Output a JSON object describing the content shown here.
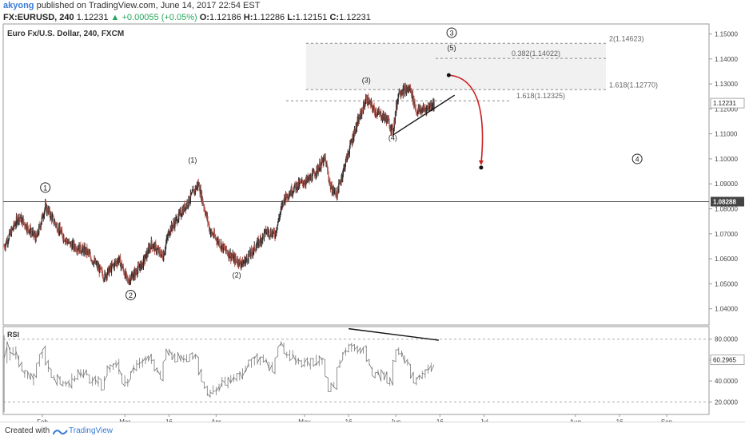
{
  "header": {
    "user": "akyong",
    "published": "published on TradingView.com, June 14, 2017 22:54 EST",
    "symbol": "FX:EURUSD, 240",
    "last": "1.12231",
    "change": "▲ +0.00055 (+0.05%)",
    "o_label": "O:",
    "o_value": "1.12186",
    "h_label": "H:",
    "h_value": "1.12286",
    "l_label": "L:",
    "l_value": "1.12151",
    "c_label": "C:",
    "c_value": "1.12231"
  },
  "chart_data": {
    "type": "candlestick",
    "title": "Euro Fx/U.S. Dollar, 240, FXCM",
    "y_ticks": [
      "1.15000",
      "1.14000",
      "1.13000",
      "1.12000",
      "1.11000",
      "1.10000",
      "1.09000",
      "1.08000",
      "1.07000",
      "1.06000",
      "1.05000",
      "1.04000"
    ],
    "y_tick_values": [
      1.15,
      1.14,
      1.13,
      1.12,
      1.11,
      1.1,
      1.09,
      1.08,
      1.07,
      1.06,
      1.05,
      1.04
    ],
    "ylim": [
      1.0335,
      1.154
    ],
    "x_ticks": [
      "Feb",
      "Mar",
      "16",
      "Apr",
      "May",
      "16",
      "Jun",
      "16",
      "Jul",
      "Aug",
      "16",
      "Sep"
    ],
    "x_tick_dates": [
      "2017-02-01",
      "2017-03-01",
      "2017-03-16",
      "2017-04-01",
      "2017-05-01",
      "2017-05-16",
      "2017-06-01",
      "2017-06-16",
      "2017-07-01",
      "2017-08-01",
      "2017-08-16",
      "2017-09-01"
    ],
    "price_path": [
      {
        "d": "2017-01-19",
        "p": 1.065
      },
      {
        "d": "2017-01-24",
        "p": 1.077
      },
      {
        "d": "2017-01-30",
        "p": 1.068
      },
      {
        "d": "2017-02-02",
        "p": 1.081
      },
      {
        "d": "2017-02-07",
        "p": 1.071
      },
      {
        "d": "2017-02-10",
        "p": 1.066
      },
      {
        "d": "2017-02-16",
        "p": 1.063
      },
      {
        "d": "2017-02-22",
        "p": 1.053
      },
      {
        "d": "2017-02-27",
        "p": 1.06
      },
      {
        "d": "2017-03-02",
        "p": 1.051
      },
      {
        "d": "2017-03-07",
        "p": 1.058
      },
      {
        "d": "2017-03-10",
        "p": 1.066
      },
      {
        "d": "2017-03-14",
        "p": 1.061
      },
      {
        "d": "2017-03-16",
        "p": 1.071
      },
      {
        "d": "2017-03-21",
        "p": 1.08
      },
      {
        "d": "2017-03-26",
        "p": 1.09
      },
      {
        "d": "2017-03-30",
        "p": 1.071
      },
      {
        "d": "2017-04-03",
        "p": 1.065
      },
      {
        "d": "2017-04-07",
        "p": 1.06
      },
      {
        "d": "2017-04-10",
        "p": 1.058
      },
      {
        "d": "2017-04-14",
        "p": 1.064
      },
      {
        "d": "2017-04-18",
        "p": 1.071
      },
      {
        "d": "2017-04-21",
        "p": 1.07
      },
      {
        "d": "2017-04-24",
        "p": 1.084
      },
      {
        "d": "2017-04-28",
        "p": 1.089
      },
      {
        "d": "2017-05-03",
        "p": 1.092
      },
      {
        "d": "2017-05-08",
        "p": 1.1
      },
      {
        "d": "2017-05-10",
        "p": 1.088
      },
      {
        "d": "2017-05-12",
        "p": 1.086
      },
      {
        "d": "2017-05-16",
        "p": 1.103
      },
      {
        "d": "2017-05-18",
        "p": 1.111
      },
      {
        "d": "2017-05-22",
        "p": 1.124
      },
      {
        "d": "2017-05-25",
        "p": 1.119
      },
      {
        "d": "2017-05-29",
        "p": 1.116
      },
      {
        "d": "2017-05-31",
        "p": 1.111
      },
      {
        "d": "2017-06-02",
        "p": 1.127
      },
      {
        "d": "2017-06-06",
        "p": 1.128
      },
      {
        "d": "2017-06-08",
        "p": 1.119
      },
      {
        "d": "2017-06-11",
        "p": 1.12
      },
      {
        "d": "2017-06-14",
        "p": 1.1223
      }
    ],
    "fib_levels": [
      {
        "label": "2(1.14623)",
        "value": 1.14623
      },
      {
        "label": "0.382(1.14022)",
        "value": 1.14022
      },
      {
        "label": "1.618(1.12770)",
        "value": 1.1277
      },
      {
        "label": "1.618(1.12325)",
        "value": 1.12325
      }
    ],
    "horizontal_line": {
      "value": 1.08288,
      "label": "1.08288"
    },
    "last_price_label": "1.12231",
    "wave_labels": [
      {
        "text": "1",
        "circled": true,
        "d": "2017-02-02",
        "p": 1.0885
      },
      {
        "text": "2",
        "circled": true,
        "d": "2017-03-03",
        "p": 1.0455
      },
      {
        "text": "3",
        "circled": true,
        "d": "2017-06-20",
        "p": 1.1505
      },
      {
        "text": "4",
        "circled": true,
        "d": "2017-08-22",
        "p": 1.1
      },
      {
        "text": "(1)",
        "circled": false,
        "d": "2017-03-24",
        "p": 1.0985
      },
      {
        "text": "(2)",
        "circled": false,
        "d": "2017-04-08",
        "p": 1.0525
      },
      {
        "text": "(3)",
        "circled": false,
        "d": "2017-05-22",
        "p": 1.1305
      },
      {
        "text": "(4)",
        "circled": false,
        "d": "2017-05-31",
        "p": 1.1075
      },
      {
        "text": "(5)",
        "circled": false,
        "d": "2017-06-20",
        "p": 1.1435
      }
    ],
    "forecast_arrow": {
      "from": {
        "d": "2017-06-19",
        "p": 1.1335
      },
      "to": {
        "d": "2017-06-30",
        "p": 1.0965
      },
      "color": "#cc1f1f"
    },
    "trendline": {
      "from": {
        "d": "2017-05-31",
        "p": 1.1095
      },
      "to": {
        "d": "2017-06-21",
        "p": 1.1255
      }
    },
    "rsi": {
      "label": "RSI",
      "y_ticks": [
        "80.0000",
        "60.0000",
        "40.0000",
        "20.0000"
      ],
      "y_tick_values": [
        80,
        60,
        40,
        20
      ],
      "ylim": [
        8,
        92
      ],
      "last_value": "60.2965",
      "last_value_num": 60.2965,
      "divergence_line": {
        "from": {
          "d": "2017-05-16",
          "v": 90
        },
        "to": {
          "d": "2017-06-14",
          "v": 79
        }
      }
    }
  },
  "footer": {
    "created_with": "Created with",
    "brand": "TradingView"
  }
}
